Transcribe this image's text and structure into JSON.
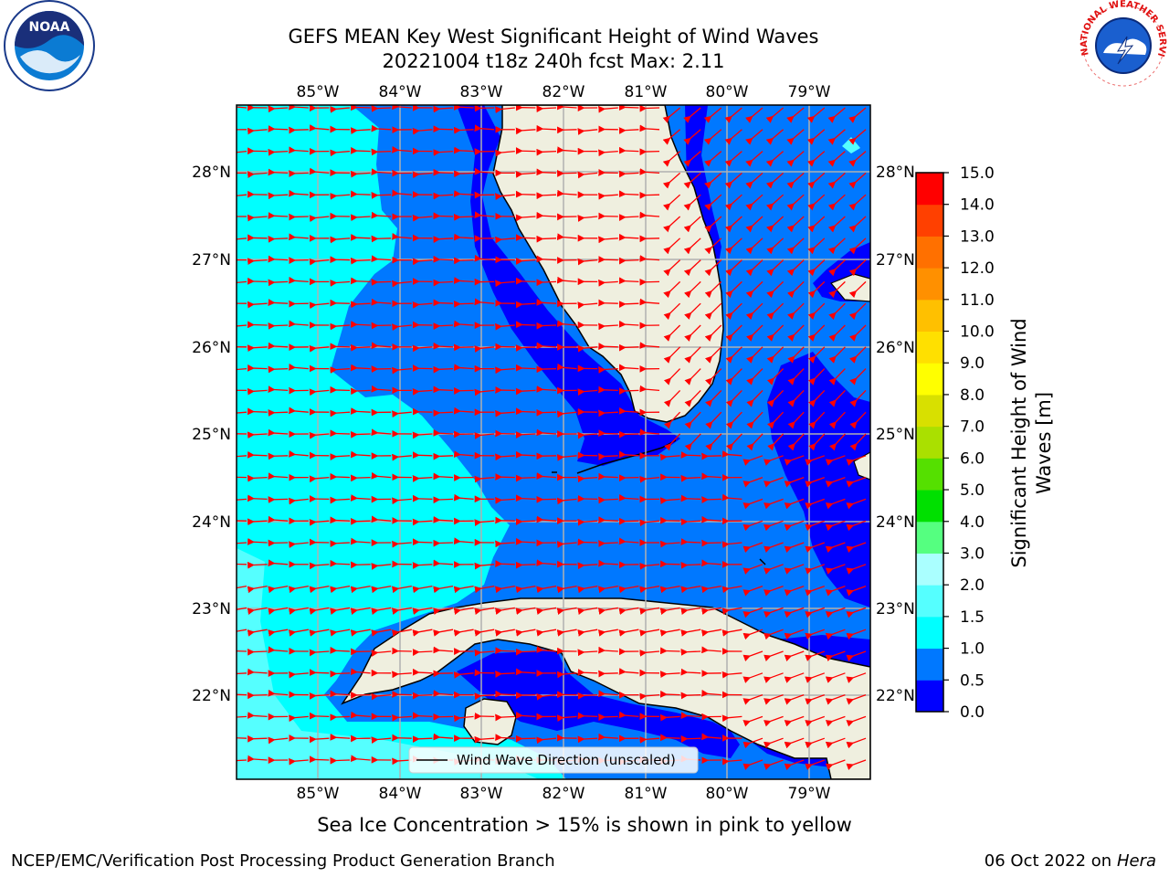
{
  "title": {
    "line1": "GEFS MEAN Key West Significant Height of Wind Waves",
    "line2": "20221004 t18z 240h fcst   Max: 2.11"
  },
  "logos": {
    "left": {
      "icon": "noaa-logo",
      "text": "NOAA"
    },
    "right": {
      "icon": "nws-logo",
      "text": "NATIONAL WEATHER SERVICE"
    }
  },
  "map": {
    "lon_labels": [
      "85°W",
      "84°W",
      "83°W",
      "82°W",
      "81°W",
      "80°W",
      "79°W"
    ],
    "lat_labels": [
      "28°N",
      "27°N",
      "26°N",
      "25°N",
      "24°N",
      "23°N",
      "22°N"
    ],
    "legend_text": "Wind Wave Direction (unscaled)",
    "land_color": "#efefdf",
    "arrow_color": "#ff0000"
  },
  "colorbar": {
    "label_line1": "Significant Height of Wind",
    "label_line2": "Waves [m]",
    "ticks": [
      "0.0",
      "0.5",
      "1.0",
      "1.5",
      "2.0",
      "3.0",
      "4.0",
      "5.0",
      "6.0",
      "7.0",
      "8.0",
      "9.0",
      "10.0",
      "11.0",
      "12.0",
      "13.0",
      "14.0",
      "15.0"
    ],
    "colors": [
      "#0000ff",
      "#0078ff",
      "#00ffff",
      "#55ffff",
      "#aaffff",
      "#55ff80",
      "#00e000",
      "#55e000",
      "#aae000",
      "#d8e000",
      "#ffff00",
      "#ffe000",
      "#ffc000",
      "#ff9000",
      "#ff7000",
      "#ff4000",
      "#ff0000"
    ]
  },
  "footer": {
    "note": "Sea Ice Concentration > 15% is shown in pink to yellow",
    "left": "NCEP/EMC/Verification Post Processing Product Generation Branch",
    "right_date": "06 Oct 2022 on ",
    "right_host": "Hera"
  }
}
